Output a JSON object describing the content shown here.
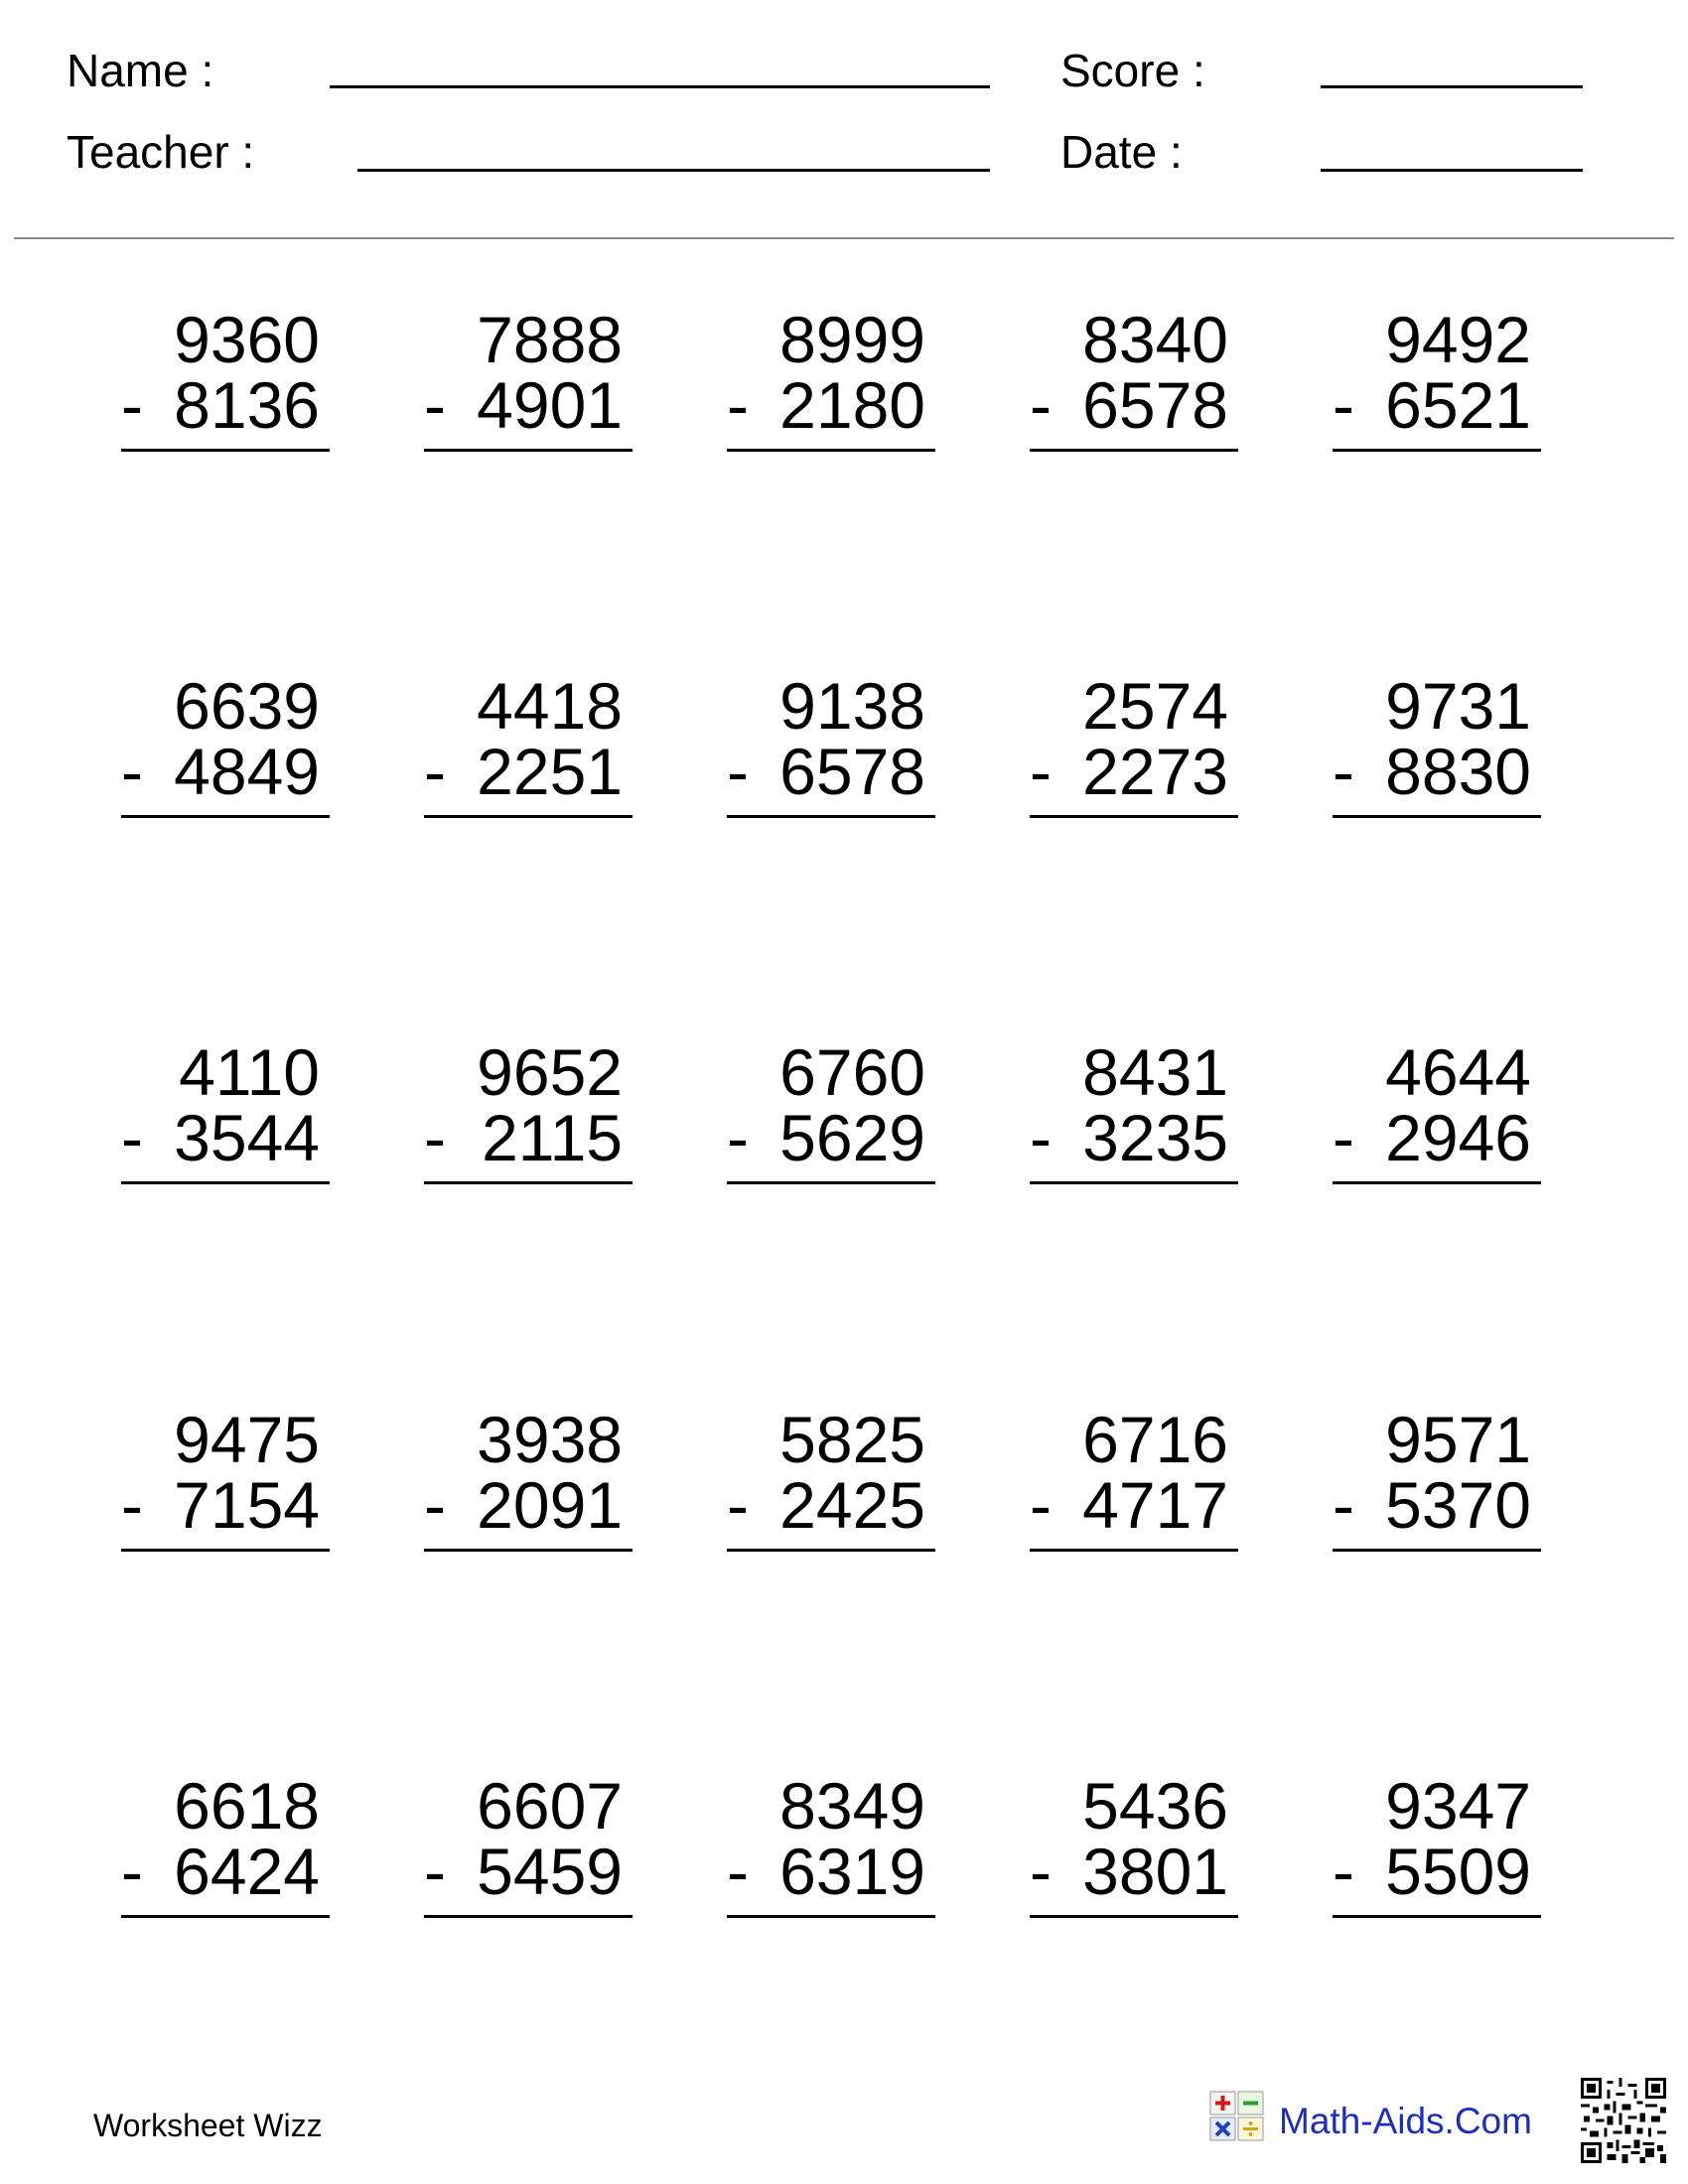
{
  "header": {
    "name_label": "Name :",
    "teacher_label": "Teacher :",
    "score_label": "Score :",
    "date_label": "Date :"
  },
  "operator": "-",
  "problems": [
    [
      {
        "top": "9360",
        "bottom": "8136"
      },
      {
        "top": "7888",
        "bottom": "4901"
      },
      {
        "top": "8999",
        "bottom": "2180"
      },
      {
        "top": "8340",
        "bottom": "6578"
      },
      {
        "top": "9492",
        "bottom": "6521"
      }
    ],
    [
      {
        "top": "6639",
        "bottom": "4849"
      },
      {
        "top": "4418",
        "bottom": "2251"
      },
      {
        "top": "9138",
        "bottom": "6578"
      },
      {
        "top": "2574",
        "bottom": "2273"
      },
      {
        "top": "9731",
        "bottom": "8830"
      }
    ],
    [
      {
        "top": "4110",
        "bottom": "3544"
      },
      {
        "top": "9652",
        "bottom": "2115"
      },
      {
        "top": "6760",
        "bottom": "5629"
      },
      {
        "top": "8431",
        "bottom": "3235"
      },
      {
        "top": "4644",
        "bottom": "2946"
      }
    ],
    [
      {
        "top": "9475",
        "bottom": "7154"
      },
      {
        "top": "3938",
        "bottom": "2091"
      },
      {
        "top": "5825",
        "bottom": "2425"
      },
      {
        "top": "6716",
        "bottom": "4717"
      },
      {
        "top": "9571",
        "bottom": "5370"
      }
    ],
    [
      {
        "top": "6618",
        "bottom": "6424"
      },
      {
        "top": "6607",
        "bottom": "5459"
      },
      {
        "top": "8349",
        "bottom": "6319"
      },
      {
        "top": "5436",
        "bottom": "3801"
      },
      {
        "top": "9347",
        "bottom": "5509"
      }
    ]
  ],
  "footer": {
    "left_text": "Worksheet Wizz",
    "brand_text": "Math-Aids.Com",
    "brand_icon": "math-operations-icon",
    "qr_icon": "qr-code-icon",
    "brand_color": "#1f2fb8"
  }
}
